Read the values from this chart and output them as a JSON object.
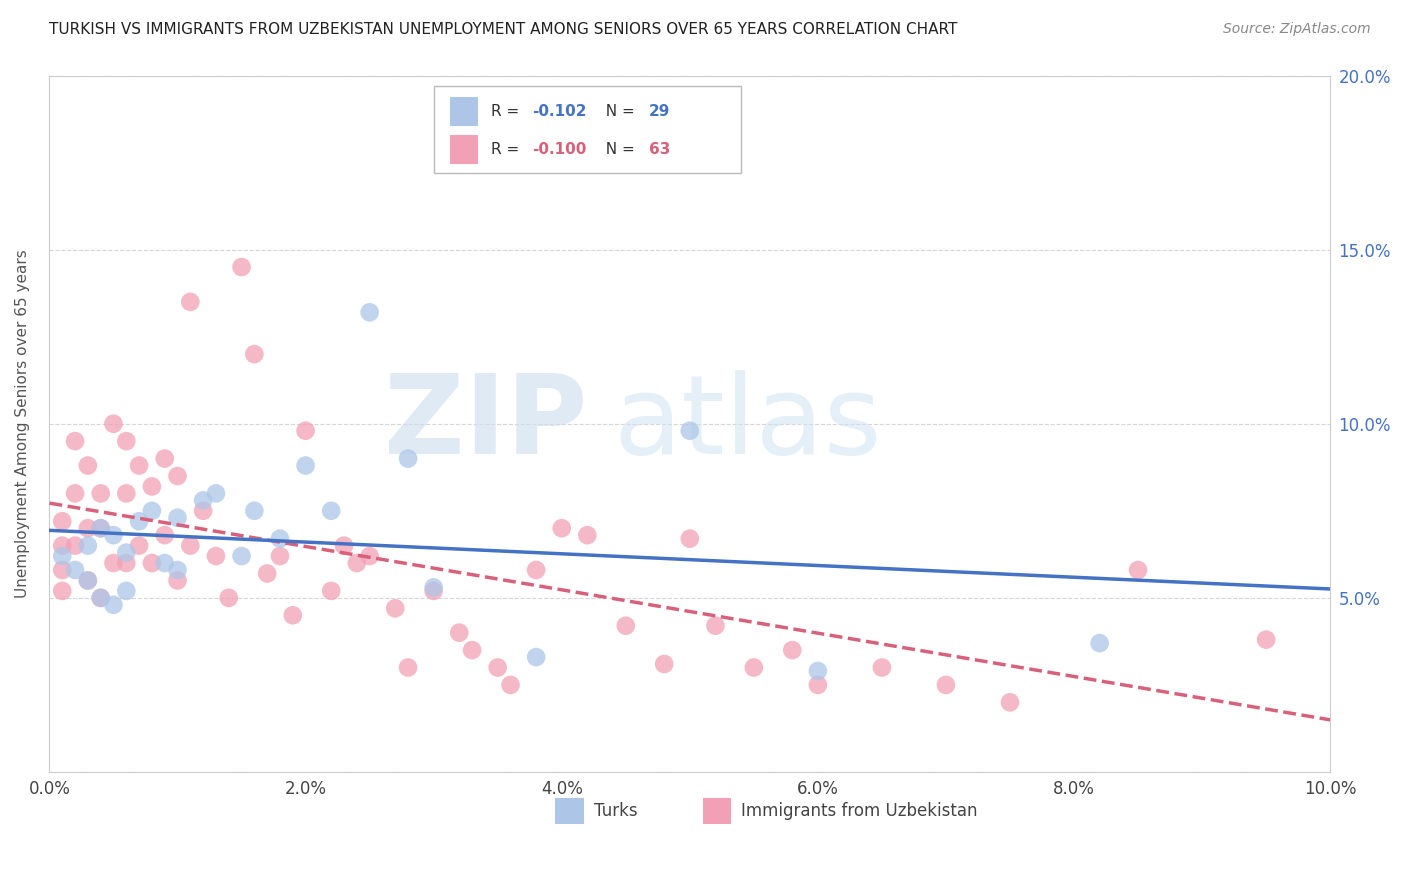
{
  "title": "TURKISH VS IMMIGRANTS FROM UZBEKISTAN UNEMPLOYMENT AMONG SENIORS OVER 65 YEARS CORRELATION CHART",
  "source": "Source: ZipAtlas.com",
  "ylabel": "Unemployment Among Seniors over 65 years",
  "xlim": [
    0,
    0.1
  ],
  "ylim": [
    0,
    0.2
  ],
  "x_ticks": [
    0.0,
    0.02,
    0.04,
    0.06,
    0.08,
    0.1
  ],
  "y_ticks": [
    0.0,
    0.05,
    0.1,
    0.15,
    0.2
  ],
  "x_tick_labels": [
    "0.0%",
    "2.0%",
    "4.0%",
    "6.0%",
    "8.0%",
    "10.0%"
  ],
  "y_tick_labels_right": [
    "",
    "5.0%",
    "10.0%",
    "15.0%",
    "20.0%"
  ],
  "legend_label1": "Turks",
  "legend_label2": "Immigrants from Uzbekistan",
  "color_blue": "#adc6e8",
  "color_pink": "#f2a0b5",
  "color_blue_line": "#4472c4",
  "color_pink_line": "#d9607a",
  "color_blue_text": "#4472c4",
  "color_pink_text": "#d9607a",
  "turks_x": [
    0.001,
    0.002,
    0.003,
    0.003,
    0.004,
    0.004,
    0.005,
    0.005,
    0.006,
    0.006,
    0.007,
    0.008,
    0.009,
    0.01,
    0.01,
    0.012,
    0.013,
    0.015,
    0.016,
    0.018,
    0.02,
    0.022,
    0.025,
    0.028,
    0.03,
    0.038,
    0.05,
    0.06,
    0.082
  ],
  "turks_y": [
    0.062,
    0.058,
    0.065,
    0.055,
    0.07,
    0.05,
    0.068,
    0.048,
    0.063,
    0.052,
    0.072,
    0.075,
    0.06,
    0.073,
    0.058,
    0.078,
    0.08,
    0.062,
    0.075,
    0.067,
    0.088,
    0.075,
    0.132,
    0.09,
    0.053,
    0.033,
    0.098,
    0.029,
    0.037
  ],
  "uzbek_x": [
    0.001,
    0.001,
    0.001,
    0.001,
    0.002,
    0.002,
    0.002,
    0.003,
    0.003,
    0.003,
    0.004,
    0.004,
    0.004,
    0.005,
    0.005,
    0.006,
    0.006,
    0.006,
    0.007,
    0.007,
    0.008,
    0.008,
    0.009,
    0.009,
    0.01,
    0.01,
    0.011,
    0.011,
    0.012,
    0.013,
    0.014,
    0.015,
    0.016,
    0.017,
    0.018,
    0.019,
    0.02,
    0.022,
    0.023,
    0.024,
    0.025,
    0.027,
    0.028,
    0.03,
    0.032,
    0.033,
    0.035,
    0.036,
    0.038,
    0.04,
    0.042,
    0.045,
    0.048,
    0.05,
    0.052,
    0.055,
    0.058,
    0.06,
    0.065,
    0.07,
    0.075,
    0.085,
    0.095
  ],
  "uzbek_y": [
    0.072,
    0.065,
    0.058,
    0.052,
    0.095,
    0.08,
    0.065,
    0.088,
    0.07,
    0.055,
    0.08,
    0.07,
    0.05,
    0.1,
    0.06,
    0.095,
    0.08,
    0.06,
    0.088,
    0.065,
    0.082,
    0.06,
    0.09,
    0.068,
    0.085,
    0.055,
    0.135,
    0.065,
    0.075,
    0.062,
    0.05,
    0.145,
    0.12,
    0.057,
    0.062,
    0.045,
    0.098,
    0.052,
    0.065,
    0.06,
    0.062,
    0.047,
    0.03,
    0.052,
    0.04,
    0.035,
    0.03,
    0.025,
    0.058,
    0.07,
    0.068,
    0.042,
    0.031,
    0.067,
    0.042,
    0.03,
    0.035,
    0.025,
    0.03,
    0.025,
    0.02,
    0.058,
    0.038
  ]
}
